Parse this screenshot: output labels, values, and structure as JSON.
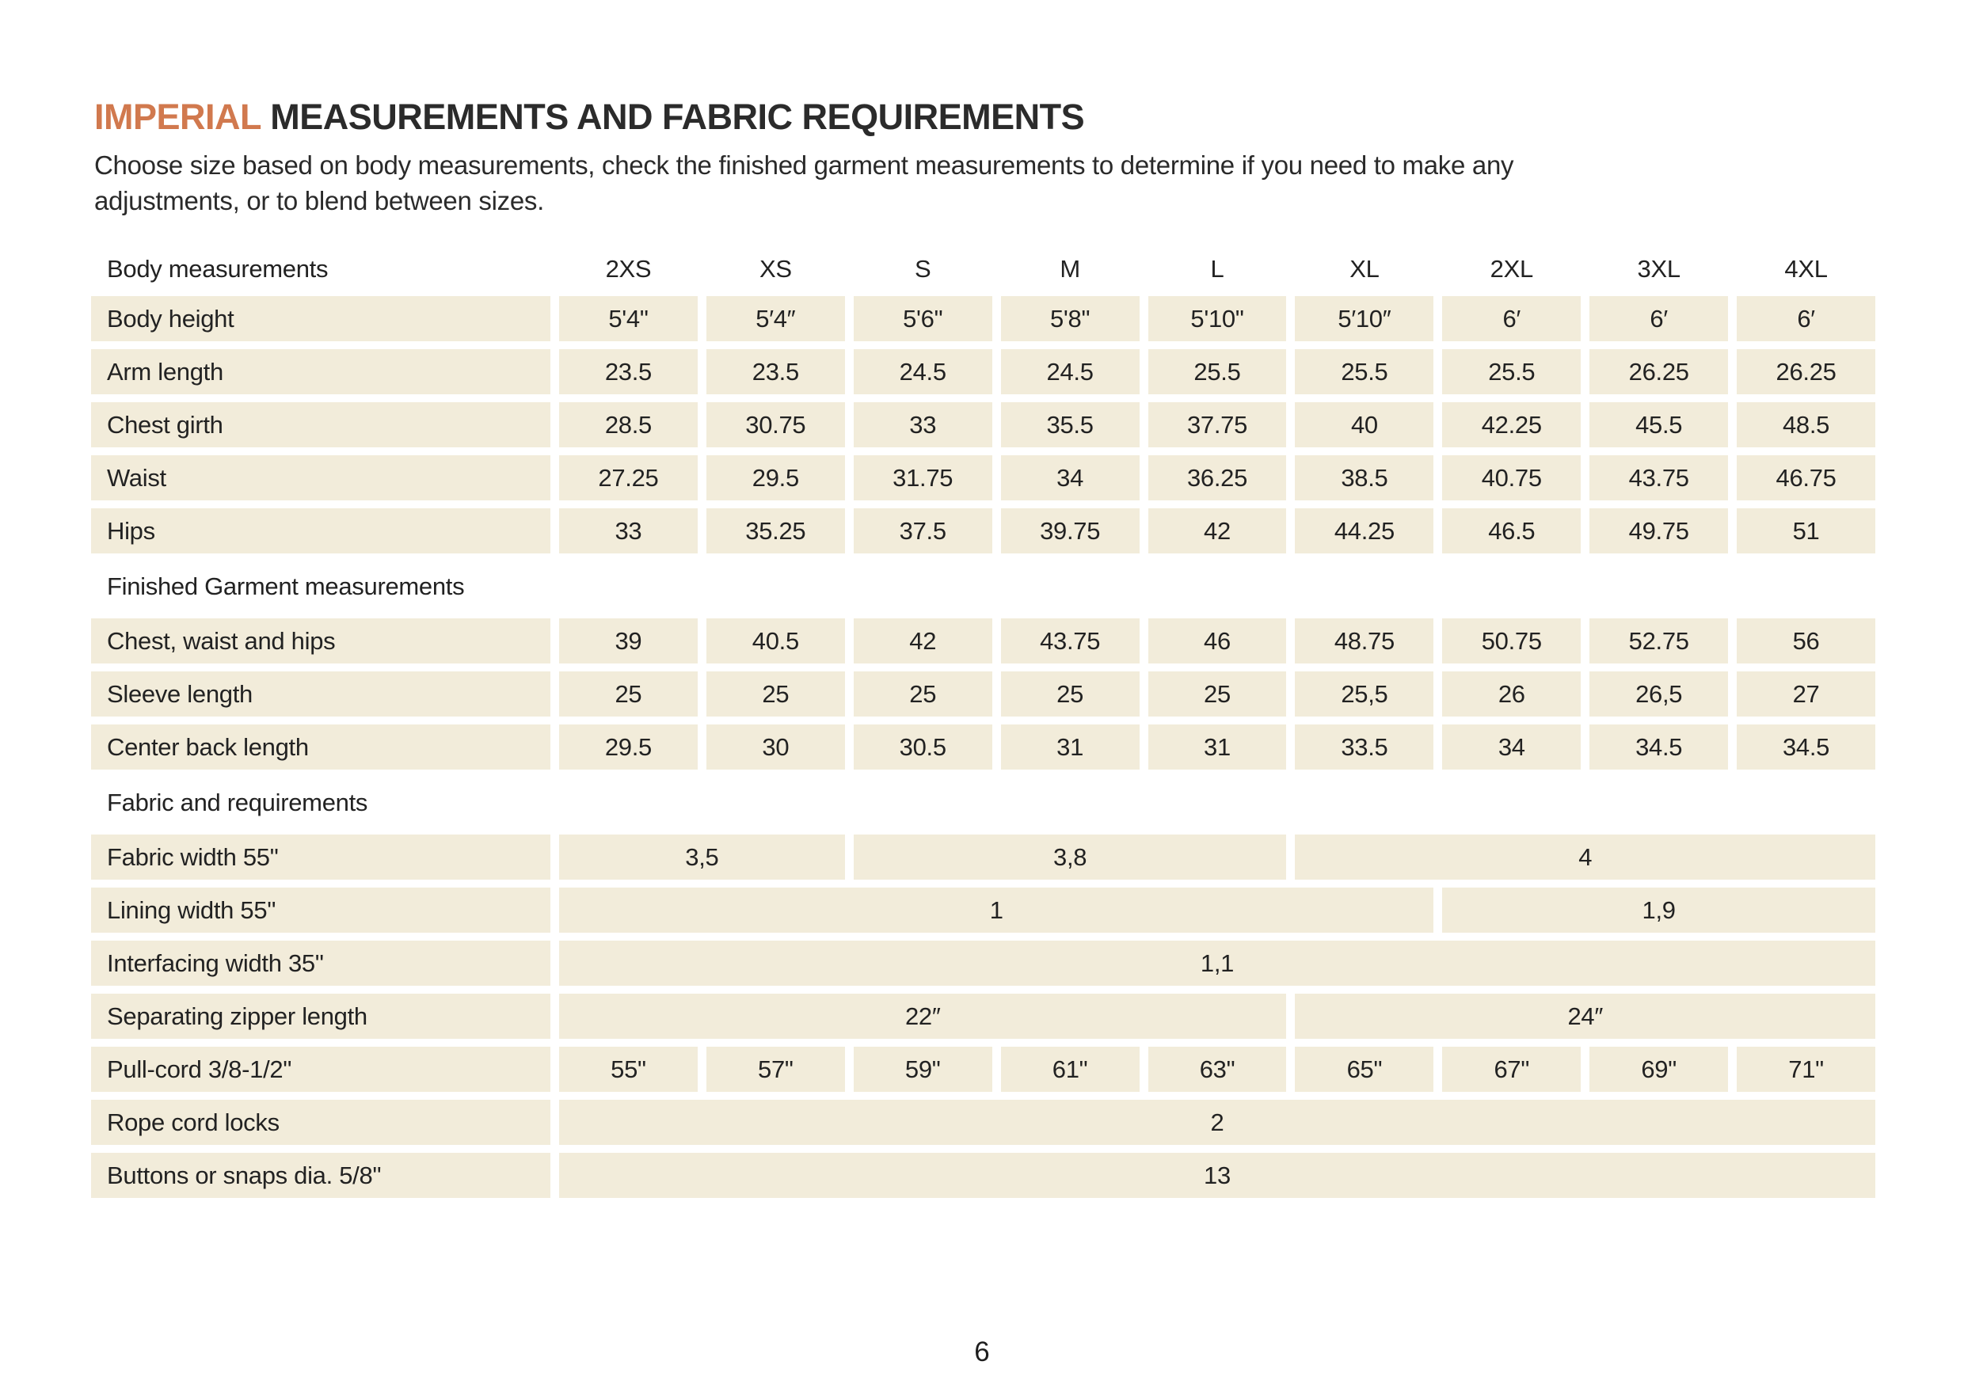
{
  "page": {
    "title_accent": "IMPERIAL",
    "title_rest": " MEASUREMENTS AND FABRIC REQUIREMENTS",
    "subtitle_line1": "Choose size based on body measurements, check the finished garment measurements to determine if you need to make any",
    "subtitle_line2": "adjustments, or to blend between sizes.",
    "page_number": "6"
  },
  "colors": {
    "accent_orange": "#d1794e",
    "cell_background": "#f2ecda",
    "text": "#222222",
    "page_background": "#ffffff"
  },
  "table": {
    "header_label": "Body measurements",
    "sizes": [
      "2XS",
      "XS",
      "S",
      "M",
      "L",
      "XL",
      "2XL",
      "3XL",
      "4XL"
    ],
    "rows": [
      {
        "type": "data",
        "label": "Body height",
        "cells": [
          {
            "value": "5'4\"",
            "span": 1
          },
          {
            "value": "5′4″",
            "span": 1
          },
          {
            "value": "5'6\"",
            "span": 1
          },
          {
            "value": "5'8\"",
            "span": 1
          },
          {
            "value": "5'10\"",
            "span": 1
          },
          {
            "value": "5′10″",
            "span": 1
          },
          {
            "value": "6′",
            "span": 1
          },
          {
            "value": "6′",
            "span": 1
          },
          {
            "value": "6′",
            "span": 1
          }
        ]
      },
      {
        "type": "data",
        "label": "Arm length",
        "cells": [
          {
            "value": "23.5",
            "span": 1
          },
          {
            "value": "23.5",
            "span": 1
          },
          {
            "value": "24.5",
            "span": 1
          },
          {
            "value": "24.5",
            "span": 1
          },
          {
            "value": "25.5",
            "span": 1
          },
          {
            "value": "25.5",
            "span": 1
          },
          {
            "value": "25.5",
            "span": 1
          },
          {
            "value": "26.25",
            "span": 1
          },
          {
            "value": "26.25",
            "span": 1
          }
        ]
      },
      {
        "type": "data",
        "label": "Chest girth",
        "cells": [
          {
            "value": "28.5",
            "span": 1
          },
          {
            "value": "30.75",
            "span": 1
          },
          {
            "value": "33",
            "span": 1
          },
          {
            "value": "35.5",
            "span": 1
          },
          {
            "value": "37.75",
            "span": 1
          },
          {
            "value": "40",
            "span": 1
          },
          {
            "value": "42.25",
            "span": 1
          },
          {
            "value": "45.5",
            "span": 1
          },
          {
            "value": "48.5",
            "span": 1
          }
        ]
      },
      {
        "type": "data",
        "label": "Waist",
        "cells": [
          {
            "value": "27.25",
            "span": 1
          },
          {
            "value": "29.5",
            "span": 1
          },
          {
            "value": "31.75",
            "span": 1
          },
          {
            "value": "34",
            "span": 1
          },
          {
            "value": "36.25",
            "span": 1
          },
          {
            "value": "38.5",
            "span": 1
          },
          {
            "value": "40.75",
            "span": 1
          },
          {
            "value": "43.75",
            "span": 1
          },
          {
            "value": "46.75",
            "span": 1
          }
        ]
      },
      {
        "type": "data",
        "label": "Hips",
        "cells": [
          {
            "value": "33",
            "span": 1
          },
          {
            "value": "35.25",
            "span": 1
          },
          {
            "value": "37.5",
            "span": 1
          },
          {
            "value": "39.75",
            "span": 1
          },
          {
            "value": "42",
            "span": 1
          },
          {
            "value": "44.25",
            "span": 1
          },
          {
            "value": "46.5",
            "span": 1
          },
          {
            "value": "49.75",
            "span": 1
          },
          {
            "value": "51",
            "span": 1
          }
        ]
      },
      {
        "type": "section",
        "label": "Finished Garment measurements"
      },
      {
        "type": "data",
        "label": "Chest, waist and hips",
        "cells": [
          {
            "value": "39",
            "span": 1
          },
          {
            "value": "40.5",
            "span": 1
          },
          {
            "value": "42",
            "span": 1
          },
          {
            "value": "43.75",
            "span": 1
          },
          {
            "value": "46",
            "span": 1
          },
          {
            "value": "48.75",
            "span": 1
          },
          {
            "value": "50.75",
            "span": 1
          },
          {
            "value": "52.75",
            "span": 1
          },
          {
            "value": "56",
            "span": 1
          }
        ]
      },
      {
        "type": "data",
        "label": "Sleeve length",
        "cells": [
          {
            "value": "25",
            "span": 1
          },
          {
            "value": "25",
            "span": 1
          },
          {
            "value": "25",
            "span": 1
          },
          {
            "value": "25",
            "span": 1
          },
          {
            "value": "25",
            "span": 1
          },
          {
            "value": "25,5",
            "span": 1
          },
          {
            "value": "26",
            "span": 1
          },
          {
            "value": "26,5",
            "span": 1
          },
          {
            "value": "27",
            "span": 1
          }
        ]
      },
      {
        "type": "data",
        "label": "Center back length",
        "cells": [
          {
            "value": "29.5",
            "span": 1
          },
          {
            "value": "30",
            "span": 1
          },
          {
            "value": "30.5",
            "span": 1
          },
          {
            "value": "31",
            "span": 1
          },
          {
            "value": "31",
            "span": 1
          },
          {
            "value": "33.5",
            "span": 1
          },
          {
            "value": "34",
            "span": 1
          },
          {
            "value": "34.5",
            "span": 1
          },
          {
            "value": "34.5",
            "span": 1
          }
        ]
      },
      {
        "type": "section",
        "label": "Fabric and requirements"
      },
      {
        "type": "data",
        "label": "Fabric width 55\"",
        "cells": [
          {
            "value": "3,5",
            "span": 2
          },
          {
            "value": "3,8",
            "span": 3
          },
          {
            "value": "4",
            "span": 4
          }
        ]
      },
      {
        "type": "data",
        "label": "Lining width 55\"",
        "cells": [
          {
            "value": "1",
            "span": 6
          },
          {
            "value": "1,9",
            "span": 3
          }
        ]
      },
      {
        "type": "data",
        "label": "Interfacing width 35\"",
        "cells": [
          {
            "value": "1,1",
            "span": 9
          }
        ]
      },
      {
        "type": "data",
        "label": "Separating zipper length",
        "cells": [
          {
            "value": "22″",
            "span": 5
          },
          {
            "value": "24″",
            "span": 4
          }
        ]
      },
      {
        "type": "data",
        "label": "Pull-cord 3/8-1/2\"",
        "cells": [
          {
            "value": "55\"",
            "span": 1
          },
          {
            "value": "57\"",
            "span": 1
          },
          {
            "value": "59\"",
            "span": 1
          },
          {
            "value": "61\"",
            "span": 1
          },
          {
            "value": "63\"",
            "span": 1
          },
          {
            "value": "65\"",
            "span": 1
          },
          {
            "value": "67\"",
            "span": 1
          },
          {
            "value": "69\"",
            "span": 1
          },
          {
            "value": "71\"",
            "span": 1
          }
        ]
      },
      {
        "type": "data",
        "label": "Rope cord locks",
        "cells": [
          {
            "value": "2",
            "span": 9
          }
        ]
      },
      {
        "type": "data",
        "label": "Buttons or snaps dia. 5/8\"",
        "cells": [
          {
            "value": "13",
            "span": 9
          }
        ]
      }
    ]
  }
}
